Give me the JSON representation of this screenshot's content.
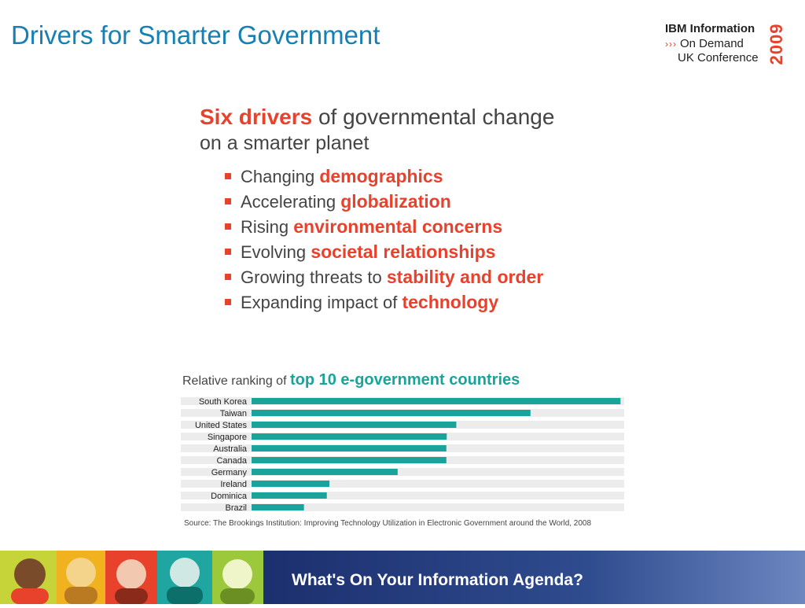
{
  "slide": {
    "title": "Drivers for Smarter Government"
  },
  "logo": {
    "line1": "IBM Information",
    "arrows": "›››",
    "line2": "On Demand",
    "line3": "UK Conference",
    "year": "2009"
  },
  "drivers": {
    "heading_highlight": "Six drivers",
    "heading_rest": " of governmental change",
    "subheading": "on a smarter planet",
    "items": [
      {
        "prefix": "Changing ",
        "highlight": "demographics"
      },
      {
        "prefix": "Accelerating ",
        "highlight": "globalization"
      },
      {
        "prefix": "Rising ",
        "highlight": "environmental concerns"
      },
      {
        "prefix": "Evolving ",
        "highlight": "societal relationships"
      },
      {
        "prefix": "Growing threats to ",
        "highlight": "stability and order"
      },
      {
        "prefix": "Expanding impact of ",
        "highlight": "technology"
      }
    ]
  },
  "chart_data": {
    "type": "bar",
    "orientation": "horizontal",
    "title_prefix": "Relative ranking of ",
    "title_highlight": "top 10 e-government countries",
    "categories": [
      "South Korea",
      "Taiwan",
      "United States",
      "Singapore",
      "Australia",
      "Canada",
      "Germany",
      "Ireland",
      "Dominica",
      "Brazil"
    ],
    "values": [
      100,
      75.6,
      55.5,
      52.9,
      52.8,
      52.8,
      39.6,
      21.1,
      20.4,
      14.2
    ],
    "xlim": [
      0,
      101
    ],
    "grid": false,
    "legend": "none",
    "bar_color": "#1aa39a",
    "track_color": "#ececec",
    "source": "Source: The Brookings Institution: Improving Technology Utilization in Electronic Government around the World, 2008"
  },
  "footer": {
    "tagline": "What's On Your Information Agenda?"
  },
  "colors": {
    "title_blue": "#1680b4",
    "accent_red": "#e8412c",
    "accent_teal": "#1aa39a"
  }
}
